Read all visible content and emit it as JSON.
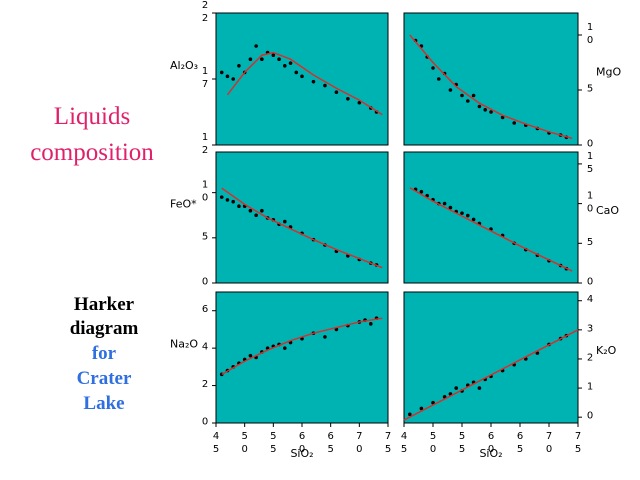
{
  "slide": {
    "title": [
      "Liquids",
      "composition"
    ],
    "caption": [
      "Harker",
      "diagram",
      "for",
      "Crater",
      "Lake"
    ]
  },
  "chart_data": [
    {
      "type": "scatter",
      "ylabel": "Al₂O₃",
      "color": "#000000",
      "background": "#00b3b3",
      "x": [
        46,
        47,
        48,
        49,
        50,
        51,
        52,
        53,
        54,
        55,
        56,
        57,
        58,
        59,
        60,
        62,
        64,
        66,
        68,
        70,
        72,
        73
      ],
      "values": [
        17.5,
        17.2,
        17.0,
        18.0,
        17.5,
        18.5,
        19.5,
        18.5,
        19.0,
        18.8,
        18.5,
        18.0,
        18.2,
        17.5,
        17.2,
        16.8,
        16.5,
        16.0,
        15.5,
        15.2,
        14.8,
        14.5
      ],
      "trend": {
        "color": "#d2322d",
        "x": [
          47,
          50,
          53,
          55,
          58,
          62,
          66,
          70,
          74
        ],
        "values": [
          15.8,
          17.5,
          18.8,
          19.0,
          18.5,
          17.3,
          16.3,
          15.4,
          14.3
        ]
      },
      "xlim": [
        45,
        75
      ],
      "ylim": [
        12,
        22
      ],
      "yticks": [
        12,
        17,
        22
      ],
      "yaxis_side": "left"
    },
    {
      "type": "scatter",
      "ylabel": "MgO",
      "color": "#000000",
      "background": "#00b3b3",
      "x": [
        47,
        48,
        49,
        50,
        51,
        52,
        53,
        54,
        55,
        56,
        57,
        58,
        59,
        60,
        62,
        64,
        66,
        68,
        70,
        72,
        73
      ],
      "values": [
        9.5,
        9,
        8,
        7,
        6,
        6.5,
        5,
        5.5,
        4.5,
        4,
        4.5,
        3.5,
        3.2,
        3.0,
        2.5,
        2.0,
        1.8,
        1.5,
        1.1,
        0.9,
        0.7
      ],
      "trend": {
        "color": "#d2322d",
        "x": [
          46,
          50,
          54,
          58,
          62,
          66,
          70,
          74
        ],
        "values": [
          10,
          7.5,
          5.3,
          3.8,
          2.7,
          1.9,
          1.2,
          0.6
        ]
      },
      "xlim": [
        45,
        75
      ],
      "ylim": [
        0,
        12
      ],
      "yticks": [
        0,
        5,
        10
      ],
      "yaxis_side": "right"
    },
    {
      "type": "scatter",
      "ylabel": "FeO*",
      "color": "#000000",
      "background": "#00b3b3",
      "x": [
        46,
        47,
        48,
        49,
        50,
        51,
        52,
        53,
        54,
        55,
        56,
        57,
        58,
        60,
        62,
        64,
        66,
        68,
        70,
        72,
        73
      ],
      "values": [
        9.5,
        9.2,
        9,
        8.5,
        8.5,
        8,
        7.5,
        8,
        7.2,
        7,
        6.5,
        6.8,
        6.2,
        5.5,
        4.8,
        4.2,
        3.5,
        3.0,
        2.6,
        2.2,
        2.0
      ],
      "trend": {
        "color": "#d2322d",
        "x": [
          46,
          50,
          54,
          58,
          62,
          66,
          70,
          74
        ],
        "values": [
          10.5,
          8.7,
          7.2,
          6,
          4.8,
          3.7,
          2.7,
          1.7
        ]
      },
      "xlim": [
        45,
        75
      ],
      "ylim": [
        0,
        14.5
      ],
      "yticks": [
        0,
        5,
        10
      ],
      "yaxis_side": "left"
    },
    {
      "type": "scatter",
      "ylabel": "CaO",
      "color": "#000000",
      "background": "#00b3b3",
      "x": [
        47,
        48,
        49,
        50,
        51,
        52,
        53,
        54,
        55,
        56,
        57,
        58,
        60,
        62,
        64,
        66,
        68,
        70,
        72,
        73
      ],
      "values": [
        11.8,
        11.5,
        11,
        10.5,
        10,
        10,
        9.5,
        9,
        8.8,
        8.5,
        8,
        7.5,
        6.8,
        6,
        5,
        4.2,
        3.5,
        2.8,
        2.2,
        1.8
      ],
      "trend": {
        "color": "#d2322d",
        "x": [
          46,
          50,
          54,
          58,
          62,
          66,
          70,
          74
        ],
        "values": [
          12,
          10.3,
          8.8,
          7.3,
          5.8,
          4.3,
          2.9,
          1.5
        ]
      },
      "xlim": [
        45,
        75
      ],
      "ylim": [
        0,
        16.5
      ],
      "yticks": [
        0,
        5,
        10,
        15
      ],
      "yaxis_side": "right"
    },
    {
      "type": "scatter",
      "ylabel": "Na₂O",
      "xlabel": "SiO₂",
      "color": "#000000",
      "background": "#00b3b3",
      "x": [
        46,
        47,
        48,
        49,
        50,
        51,
        52,
        53,
        54,
        55,
        56,
        57,
        58,
        60,
        62,
        64,
        66,
        68,
        70,
        71,
        72,
        73
      ],
      "values": [
        2.6,
        2.8,
        3.0,
        3.2,
        3.4,
        3.6,
        3.5,
        3.8,
        4.0,
        4.1,
        4.2,
        4.0,
        4.3,
        4.5,
        4.8,
        4.6,
        5.0,
        5.2,
        5.4,
        5.5,
        5.3,
        5.6
      ],
      "trend": {
        "color": "#d2322d",
        "x": [
          46,
          50,
          54,
          58,
          62,
          66,
          70,
          74
        ],
        "values": [
          2.6,
          3.3,
          3.9,
          4.4,
          4.8,
          5.1,
          5.4,
          5.6
        ]
      },
      "xlim": [
        45,
        75
      ],
      "xticks": [
        45,
        50,
        55,
        60,
        65,
        70,
        75
      ],
      "ylim": [
        0,
        7
      ],
      "yticks": [
        0,
        2,
        4,
        6
      ],
      "yaxis_side": "left"
    },
    {
      "type": "scatter",
      "ylabel": "K₂O",
      "xlabel": "SiO₂",
      "color": "#000000",
      "background": "#00b3b3",
      "x": [
        46,
        48,
        50,
        52,
        53,
        54,
        55,
        56,
        57,
        58,
        59,
        60,
        62,
        64,
        66,
        68,
        70,
        72,
        73
      ],
      "values": [
        0.1,
        0.3,
        0.5,
        0.7,
        0.8,
        1.0,
        0.9,
        1.1,
        1.2,
        1.0,
        1.3,
        1.4,
        1.6,
        1.8,
        2.0,
        2.2,
        2.5,
        2.7,
        2.8
      ],
      "trend": {
        "color": "#d2322d",
        "x": [
          45,
          75
        ],
        "values": [
          -0.1,
          3.0
        ]
      },
      "xlim": [
        45,
        75
      ],
      "xticks": [
        45,
        50,
        55,
        60,
        65,
        70,
        75
      ],
      "ylim": [
        -0.2,
        4.3
      ],
      "yticks": [
        0,
        1,
        2,
        3,
        4
      ],
      "yaxis_side": "right"
    }
  ]
}
